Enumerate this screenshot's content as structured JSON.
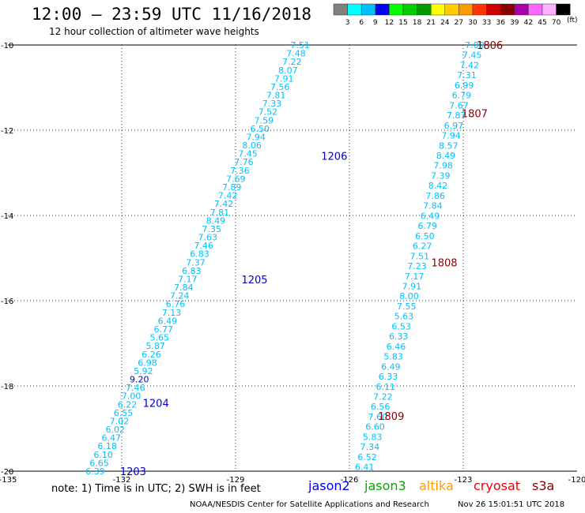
{
  "header": {
    "title": "12:00 – 23:59 UTC 11/16/2018",
    "subtitle": "12 hour collection of altimeter wave heights"
  },
  "footer": {
    "note": "note: 1) Time is in UTC; 2) SWH is in feet",
    "credit": "NOAA/NESDIS Center for Satellite Applications and Research",
    "timestamp": "Nov 26 15:01:51 UTC 2018"
  },
  "legend": {
    "satellites": [
      {
        "name": "jason2",
        "color": "#0000ee"
      },
      {
        "name": "jason3",
        "color": "#00aa00"
      },
      {
        "name": "altika",
        "color": "#ff9900"
      },
      {
        "name": "cryosat",
        "color": "#ee0000"
      },
      {
        "name": "s3a",
        "color": "#880000"
      }
    ]
  },
  "colorscale": {
    "labels": [
      "3",
      "6",
      "9",
      "12",
      "15",
      "18",
      "21",
      "24",
      "27",
      "30",
      "33",
      "36",
      "39",
      "42",
      "45",
      "70"
    ],
    "unit": "(ft)",
    "colors": [
      "#808080",
      "#00ffff",
      "#00bfff",
      "#0000ff",
      "#00ff00",
      "#00cc00",
      "#009900",
      "#ffff00",
      "#ffcc00",
      "#ff9900",
      "#ff3300",
      "#cc0000",
      "#880000",
      "#aa00aa",
      "#ff66ff",
      "#ffb0ff",
      "#000000"
    ]
  },
  "chart_data": {
    "type": "scatter",
    "xlim": [
      -135,
      -120
    ],
    "ylim": [
      -20,
      -10
    ],
    "x_ticks": [
      "-135",
      "-132",
      "-129",
      "-126",
      "-123",
      "-120"
    ],
    "x_tick_values": [
      -135,
      -132,
      -129,
      -126,
      -123,
      -120
    ],
    "y_ticks": [
      "-10",
      "-12",
      "-14",
      "-16",
      "-18",
      "-20"
    ],
    "y_tick_values": [
      -10,
      -12,
      -14,
      -16,
      -18,
      -20
    ],
    "grid": true,
    "tracks": [
      {
        "id": "left",
        "start": {
          "lon": -132.7,
          "lat": -20.0
        },
        "end": {
          "lon": -127.3,
          "lat": -10.0
        },
        "values": [
          "6.39",
          "6.65",
          "6.10",
          "6.18",
          "6.47",
          "6.02",
          "7.02",
          "6.55",
          "6.22",
          "7.00",
          "7.46",
          "9.20",
          "5.92",
          "6.98",
          "6.26",
          "5.87",
          "5.65",
          "6.77",
          "6.49",
          "7.13",
          "6.76",
          "7.24",
          "7.84",
          "7.17",
          "6.83",
          "7.37",
          "6.83",
          "7.46",
          "7.63",
          "7.35",
          "8.49",
          "7.81",
          "7.42",
          "7.42",
          "7.89",
          "7.69",
          "7.36",
          "7.76",
          "7.45",
          "8.06",
          "7.94",
          "6.50",
          "7.59",
          "7.52",
          "7.33",
          "7.81",
          "7.56",
          "7.91",
          "8.07",
          "7.22",
          "7.48",
          "7.51"
        ],
        "colors": [
          "#00bfff",
          "#00bfff",
          "#00bfff",
          "#00bfff",
          "#00bfff",
          "#00bfff",
          "#00bfff",
          "#00bfff",
          "#00bfff",
          "#00bfff",
          "#00bfff",
          "#0000cc",
          "#00bfff",
          "#00bfff",
          "#00bfff",
          "#00bfff",
          "#00bfff",
          "#00bfff",
          "#00bfff",
          "#00bfff",
          "#00bfff",
          "#00bfff",
          "#00bfff",
          "#00bfff",
          "#00bfff",
          "#00bfff",
          "#00bfff",
          "#00bfff",
          "#00bfff",
          "#00bfff",
          "#00bfff",
          "#00bfff",
          "#00bfff",
          "#00bfff",
          "#00bfff",
          "#00bfff",
          "#00bfff",
          "#00bfff",
          "#00bfff",
          "#00bfff",
          "#00bfff",
          "#00bfff",
          "#00bfff",
          "#00bfff",
          "#00bfff",
          "#00bfff",
          "#00bfff",
          "#00bfff",
          "#00bfff",
          "#00bfff",
          "#00bfff",
          "#00bfff"
        ]
      },
      {
        "id": "right",
        "start": {
          "lon": -125.6,
          "lat": -19.9
        },
        "end": {
          "lon": -122.7,
          "lat": -10.0
        },
        "values": [
          "6.41",
          "6.52",
          "7.34",
          "5.83",
          "6.60",
          "7.60",
          "6.56",
          "7.22",
          "6.11",
          "6.33",
          "6.49",
          "5.83",
          "6.46",
          "6.33",
          "6.53",
          "5.63",
          "7.55",
          "8.00",
          "7.91",
          "7.17",
          "7.23",
          "7.51",
          "6.27",
          "6.50",
          "6.79",
          "6.49",
          "7.84",
          "7.86",
          "8.42",
          "7.39",
          "7.98",
          "8.49",
          "8.57",
          "7.94",
          "6.97",
          "7.87",
          "7.67",
          "6.79",
          "6.99",
          "7.31",
          "7.42",
          "7.45",
          "7.09"
        ],
        "colors": [
          "#00bfff",
          "#00bfff",
          "#00bfff",
          "#00bfff",
          "#00bfff",
          "#00bfff",
          "#00bfff",
          "#00bfff",
          "#00bfff",
          "#00bfff",
          "#00bfff",
          "#00bfff",
          "#00bfff",
          "#00bfff",
          "#00bfff",
          "#00bfff",
          "#00bfff",
          "#00bfff",
          "#00bfff",
          "#00bfff",
          "#00bfff",
          "#00bfff",
          "#00bfff",
          "#00bfff",
          "#00bfff",
          "#00bfff",
          "#00bfff",
          "#00bfff",
          "#00bfff",
          "#00bfff",
          "#00bfff",
          "#00bfff",
          "#00bfff",
          "#00bfff",
          "#00bfff",
          "#00bfff",
          "#00bfff",
          "#00bfff",
          "#00bfff",
          "#00bfff",
          "#00bfff",
          "#00bfff",
          "#00bfff"
        ]
      }
    ],
    "time_labels": [
      {
        "text": "1203",
        "lon": -131.7,
        "lat": -20.0,
        "color": "#0000cc"
      },
      {
        "text": "1204",
        "lon": -131.1,
        "lat": -18.4,
        "color": "#0000cc"
      },
      {
        "text": "1205",
        "lon": -128.5,
        "lat": -15.5,
        "color": "#0000cc"
      },
      {
        "text": "1206",
        "lon": -126.4,
        "lat": -12.6,
        "color": "#0000cc"
      },
      {
        "text": "1806",
        "lon": -122.3,
        "lat": -10.0,
        "color": "#880000"
      },
      {
        "text": "1807",
        "lon": -122.7,
        "lat": -11.6,
        "color": "#880000"
      },
      {
        "text": "1808",
        "lon": -123.5,
        "lat": -15.1,
        "color": "#880000"
      },
      {
        "text": "1809",
        "lon": -124.9,
        "lat": -18.7,
        "color": "#880000"
      }
    ]
  }
}
